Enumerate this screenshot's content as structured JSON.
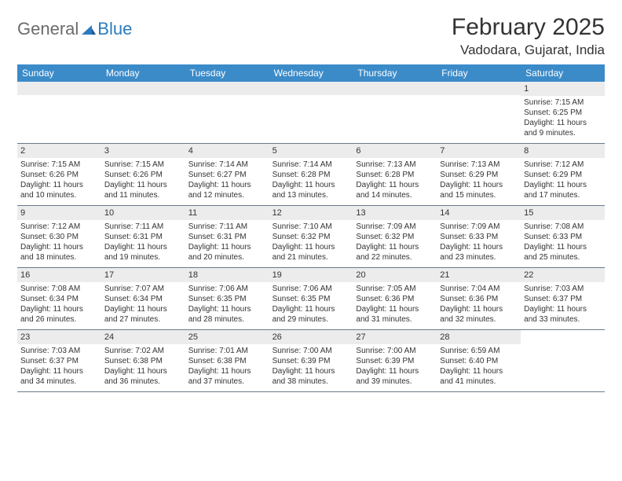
{
  "logo": {
    "text1": "General",
    "text2": "Blue"
  },
  "title": "February 2025",
  "location": "Vadodara, Gujarat, India",
  "colors": {
    "header_bg": "#3b8bc9",
    "header_text": "#ffffff",
    "daynum_bg": "#ececec",
    "border": "#6a7a8a",
    "logo_gray": "#6b6b6b",
    "logo_blue": "#2b7bbf",
    "text": "#333333",
    "background": "#ffffff"
  },
  "fonts": {
    "title_size": 30,
    "location_size": 17,
    "weekday_size": 12,
    "daynum_size": 11,
    "body_size": 10
  },
  "weekdays": [
    "Sunday",
    "Monday",
    "Tuesday",
    "Wednesday",
    "Thursday",
    "Friday",
    "Saturday"
  ],
  "weeks": [
    [
      {
        "empty": true
      },
      {
        "empty": true
      },
      {
        "empty": true
      },
      {
        "empty": true
      },
      {
        "empty": true
      },
      {
        "empty": true
      },
      {
        "num": "1",
        "sunrise": "Sunrise: 7:15 AM",
        "sunset": "Sunset: 6:25 PM",
        "daylight1": "Daylight: 11 hours",
        "daylight2": "and 9 minutes."
      }
    ],
    [
      {
        "num": "2",
        "sunrise": "Sunrise: 7:15 AM",
        "sunset": "Sunset: 6:26 PM",
        "daylight1": "Daylight: 11 hours",
        "daylight2": "and 10 minutes."
      },
      {
        "num": "3",
        "sunrise": "Sunrise: 7:15 AM",
        "sunset": "Sunset: 6:26 PM",
        "daylight1": "Daylight: 11 hours",
        "daylight2": "and 11 minutes."
      },
      {
        "num": "4",
        "sunrise": "Sunrise: 7:14 AM",
        "sunset": "Sunset: 6:27 PM",
        "daylight1": "Daylight: 11 hours",
        "daylight2": "and 12 minutes."
      },
      {
        "num": "5",
        "sunrise": "Sunrise: 7:14 AM",
        "sunset": "Sunset: 6:28 PM",
        "daylight1": "Daylight: 11 hours",
        "daylight2": "and 13 minutes."
      },
      {
        "num": "6",
        "sunrise": "Sunrise: 7:13 AM",
        "sunset": "Sunset: 6:28 PM",
        "daylight1": "Daylight: 11 hours",
        "daylight2": "and 14 minutes."
      },
      {
        "num": "7",
        "sunrise": "Sunrise: 7:13 AM",
        "sunset": "Sunset: 6:29 PM",
        "daylight1": "Daylight: 11 hours",
        "daylight2": "and 15 minutes."
      },
      {
        "num": "8",
        "sunrise": "Sunrise: 7:12 AM",
        "sunset": "Sunset: 6:29 PM",
        "daylight1": "Daylight: 11 hours",
        "daylight2": "and 17 minutes."
      }
    ],
    [
      {
        "num": "9",
        "sunrise": "Sunrise: 7:12 AM",
        "sunset": "Sunset: 6:30 PM",
        "daylight1": "Daylight: 11 hours",
        "daylight2": "and 18 minutes."
      },
      {
        "num": "10",
        "sunrise": "Sunrise: 7:11 AM",
        "sunset": "Sunset: 6:31 PM",
        "daylight1": "Daylight: 11 hours",
        "daylight2": "and 19 minutes."
      },
      {
        "num": "11",
        "sunrise": "Sunrise: 7:11 AM",
        "sunset": "Sunset: 6:31 PM",
        "daylight1": "Daylight: 11 hours",
        "daylight2": "and 20 minutes."
      },
      {
        "num": "12",
        "sunrise": "Sunrise: 7:10 AM",
        "sunset": "Sunset: 6:32 PM",
        "daylight1": "Daylight: 11 hours",
        "daylight2": "and 21 minutes."
      },
      {
        "num": "13",
        "sunrise": "Sunrise: 7:09 AM",
        "sunset": "Sunset: 6:32 PM",
        "daylight1": "Daylight: 11 hours",
        "daylight2": "and 22 minutes."
      },
      {
        "num": "14",
        "sunrise": "Sunrise: 7:09 AM",
        "sunset": "Sunset: 6:33 PM",
        "daylight1": "Daylight: 11 hours",
        "daylight2": "and 23 minutes."
      },
      {
        "num": "15",
        "sunrise": "Sunrise: 7:08 AM",
        "sunset": "Sunset: 6:33 PM",
        "daylight1": "Daylight: 11 hours",
        "daylight2": "and 25 minutes."
      }
    ],
    [
      {
        "num": "16",
        "sunrise": "Sunrise: 7:08 AM",
        "sunset": "Sunset: 6:34 PM",
        "daylight1": "Daylight: 11 hours",
        "daylight2": "and 26 minutes."
      },
      {
        "num": "17",
        "sunrise": "Sunrise: 7:07 AM",
        "sunset": "Sunset: 6:34 PM",
        "daylight1": "Daylight: 11 hours",
        "daylight2": "and 27 minutes."
      },
      {
        "num": "18",
        "sunrise": "Sunrise: 7:06 AM",
        "sunset": "Sunset: 6:35 PM",
        "daylight1": "Daylight: 11 hours",
        "daylight2": "and 28 minutes."
      },
      {
        "num": "19",
        "sunrise": "Sunrise: 7:06 AM",
        "sunset": "Sunset: 6:35 PM",
        "daylight1": "Daylight: 11 hours",
        "daylight2": "and 29 minutes."
      },
      {
        "num": "20",
        "sunrise": "Sunrise: 7:05 AM",
        "sunset": "Sunset: 6:36 PM",
        "daylight1": "Daylight: 11 hours",
        "daylight2": "and 31 minutes."
      },
      {
        "num": "21",
        "sunrise": "Sunrise: 7:04 AM",
        "sunset": "Sunset: 6:36 PM",
        "daylight1": "Daylight: 11 hours",
        "daylight2": "and 32 minutes."
      },
      {
        "num": "22",
        "sunrise": "Sunrise: 7:03 AM",
        "sunset": "Sunset: 6:37 PM",
        "daylight1": "Daylight: 11 hours",
        "daylight2": "and 33 minutes."
      }
    ],
    [
      {
        "num": "23",
        "sunrise": "Sunrise: 7:03 AM",
        "sunset": "Sunset: 6:37 PM",
        "daylight1": "Daylight: 11 hours",
        "daylight2": "and 34 minutes."
      },
      {
        "num": "24",
        "sunrise": "Sunrise: 7:02 AM",
        "sunset": "Sunset: 6:38 PM",
        "daylight1": "Daylight: 11 hours",
        "daylight2": "and 36 minutes."
      },
      {
        "num": "25",
        "sunrise": "Sunrise: 7:01 AM",
        "sunset": "Sunset: 6:38 PM",
        "daylight1": "Daylight: 11 hours",
        "daylight2": "and 37 minutes."
      },
      {
        "num": "26",
        "sunrise": "Sunrise: 7:00 AM",
        "sunset": "Sunset: 6:39 PM",
        "daylight1": "Daylight: 11 hours",
        "daylight2": "and 38 minutes."
      },
      {
        "num": "27",
        "sunrise": "Sunrise: 7:00 AM",
        "sunset": "Sunset: 6:39 PM",
        "daylight1": "Daylight: 11 hours",
        "daylight2": "and 39 minutes."
      },
      {
        "num": "28",
        "sunrise": "Sunrise: 6:59 AM",
        "sunset": "Sunset: 6:40 PM",
        "daylight1": "Daylight: 11 hours",
        "daylight2": "and 41 minutes."
      },
      {
        "empty": true,
        "noBg": true
      }
    ]
  ]
}
